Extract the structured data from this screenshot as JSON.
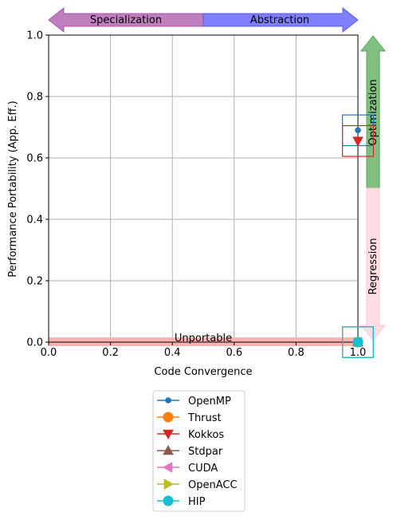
{
  "chart_data": {
    "type": "scatter",
    "xlabel": "Code Convergence",
    "ylabel": "Performance Portability (App. Eff.)",
    "xlim": [
      0,
      1
    ],
    "ylim": [
      0,
      1
    ],
    "x_ticks": [
      "0.0",
      "0.2",
      "0.4",
      "0.6",
      "0.8",
      "1.0"
    ],
    "y_ticks": [
      "0.0",
      "0.2",
      "0.4",
      "0.6",
      "0.8",
      "1.0"
    ],
    "grid": true,
    "legend_position": "bottom-center",
    "annotations": {
      "specialization": "Specialization",
      "abstraction": "Abstraction",
      "optimization": "Optimization",
      "regression": "Regression",
      "unportable": "Unportable"
    },
    "series": [
      {
        "name": "OpenMP",
        "color": "#1f77b4",
        "marker": "circle-small",
        "x": 1.0,
        "y": 0.69,
        "box": {
          "x": [
            0.95,
            1.05
          ],
          "y": [
            0.64,
            0.74
          ]
        }
      },
      {
        "name": "Thrust",
        "color": "#ff7f0e",
        "marker": "circle",
        "x": 1.0,
        "y": 0.0,
        "box": {
          "x": [
            0.95,
            1.05
          ],
          "y": [
            -0.05,
            0.05
          ]
        }
      },
      {
        "name": "Kokkos",
        "color": "#d62728",
        "marker": "triangle-down",
        "x": 1.0,
        "y": 0.655,
        "box": {
          "x": [
            0.95,
            1.05
          ],
          "y": [
            0.605,
            0.705
          ]
        }
      },
      {
        "name": "Stdpar",
        "color": "#8c564b",
        "marker": "triangle-up",
        "x": 1.0,
        "y": 0.0,
        "box": {
          "x": [
            0.95,
            1.05
          ],
          "y": [
            -0.05,
            0.05
          ]
        }
      },
      {
        "name": "CUDA",
        "color": "#e377c2",
        "marker": "triangle-left",
        "x": 1.0,
        "y": 0.0,
        "box": {
          "x": [
            0.95,
            1.05
          ],
          "y": [
            -0.05,
            0.05
          ]
        }
      },
      {
        "name": "OpenACC",
        "color": "#bcbd22",
        "marker": "triangle-right",
        "x": 1.0,
        "y": 0.0,
        "box": {
          "x": [
            0.95,
            1.05
          ],
          "y": [
            -0.05,
            0.05
          ]
        }
      },
      {
        "name": "HIP",
        "color": "#17becf",
        "marker": "circle",
        "x": 1.0,
        "y": 0.0,
        "box": {
          "x": [
            0.95,
            1.05
          ],
          "y": [
            -0.05,
            0.05
          ]
        }
      }
    ]
  }
}
